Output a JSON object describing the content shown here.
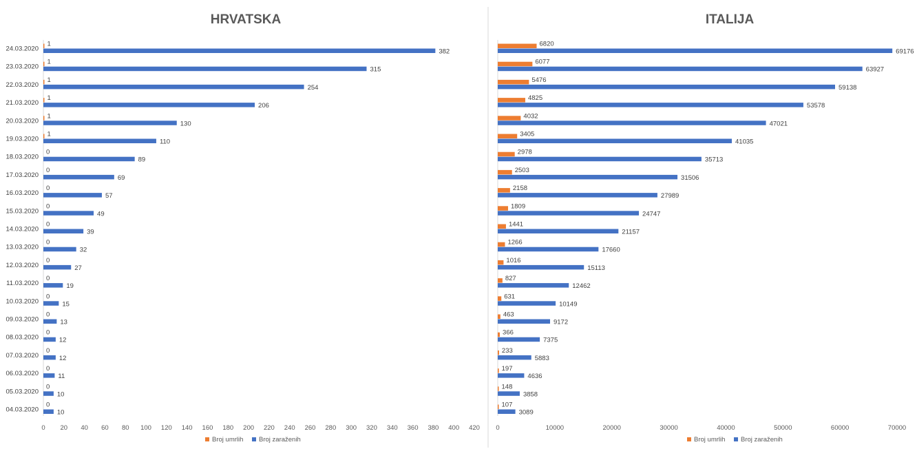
{
  "colors": {
    "deaths": "#ED7D31",
    "infected": "#4472C4",
    "axis": "#D9D9D9",
    "divider": "#D9D9D9"
  },
  "chart_data": [
    {
      "type": "bar",
      "orientation": "horizontal",
      "title": "HRVATSKA",
      "categories": [
        "04.03.2020",
        "05.03.2020",
        "06.03.2020",
        "07.03.2020",
        "08.03.2020",
        "09.03.2020",
        "10.03.2020",
        "11.03.2020",
        "12.03.2020",
        "13.03.2020",
        "14.03.2020",
        "15.03.2020",
        "16.03.2020",
        "17.03.2020",
        "18.03.2020",
        "19.03.2020",
        "20.03.2020",
        "21.03.2020",
        "22.03.2020",
        "23.03.2020",
        "24.03.2020"
      ],
      "series": [
        {
          "name": "Broj umrlih",
          "values": [
            0,
            0,
            0,
            0,
            0,
            0,
            0,
            0,
            0,
            0,
            0,
            0,
            0,
            0,
            0,
            1,
            1,
            1,
            1,
            1,
            1
          ]
        },
        {
          "name": "Broj zaraženih",
          "values": [
            10,
            10,
            11,
            12,
            12,
            13,
            15,
            19,
            27,
            32,
            39,
            49,
            57,
            69,
            89,
            110,
            130,
            206,
            254,
            315,
            382
          ]
        }
      ],
      "xlim": [
        0,
        420
      ],
      "xticks": [
        0,
        20,
        40,
        60,
        80,
        100,
        120,
        140,
        160,
        180,
        200,
        220,
        240,
        260,
        280,
        300,
        320,
        340,
        360,
        380,
        400,
        420
      ],
      "legend_position": "bottom",
      "grid": false
    },
    {
      "type": "bar",
      "orientation": "horizontal",
      "title": "ITALIJA",
      "categories": [
        "04.03.2020",
        "05.03.2020",
        "06.03.2020",
        "07.03.2020",
        "08.03.2020",
        "09.03.2020",
        "10.03.2020",
        "11.03.2020",
        "12.03.2020",
        "13.03.2020",
        "14.03.2020",
        "15.03.2020",
        "16.03.2020",
        "17.03.2020",
        "18.03.2020",
        "19.03.2020",
        "20.03.2020",
        "21.03.2020",
        "22.03.2020",
        "23.03.2020",
        "24.03.2020"
      ],
      "series": [
        {
          "name": "Broj umrlih",
          "values": [
            107,
            148,
            197,
            233,
            366,
            463,
            631,
            827,
            1016,
            1266,
            1441,
            1809,
            2158,
            2503,
            2978,
            3405,
            4032,
            4825,
            5476,
            6077,
            6820
          ]
        },
        {
          "name": "Broj zaraženih",
          "values": [
            3089,
            3858,
            4636,
            5883,
            7375,
            9172,
            10149,
            12462,
            15113,
            17660,
            21157,
            24747,
            27989,
            31506,
            35713,
            41035,
            47021,
            53578,
            59138,
            63927,
            69176
          ]
        }
      ],
      "xlim": [
        0,
        70000
      ],
      "xticks": [
        0,
        10000,
        20000,
        30000,
        40000,
        50000,
        60000,
        70000
      ],
      "legend_position": "bottom",
      "grid": false
    }
  ]
}
